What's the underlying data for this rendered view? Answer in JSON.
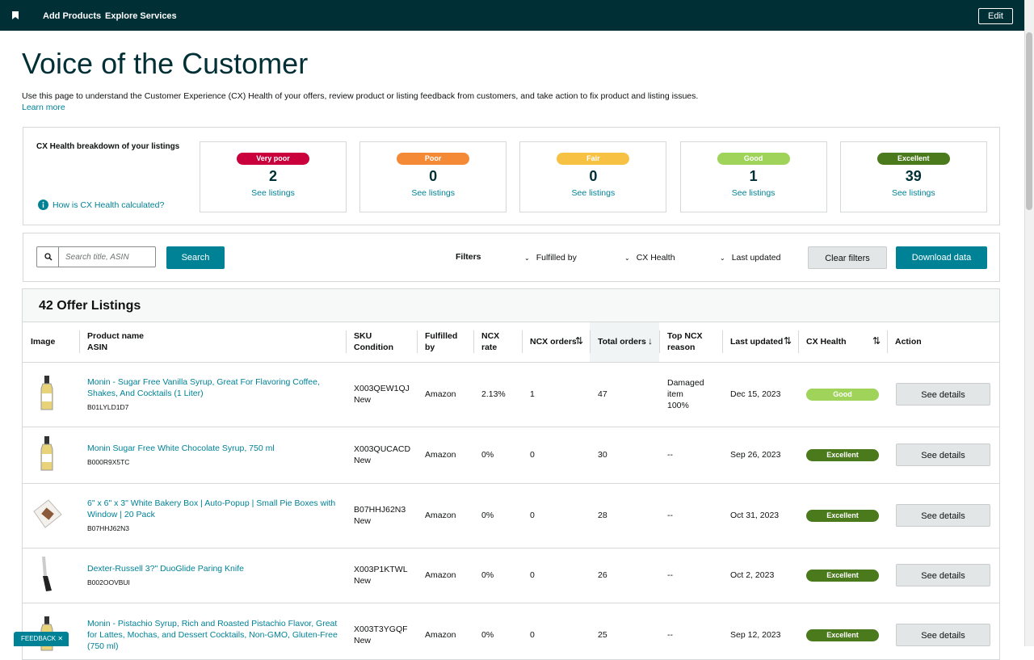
{
  "nav": {
    "items": [
      "Add Products",
      "Explore Services"
    ],
    "edit": "Edit"
  },
  "header": {
    "title": "Voice of the Customer",
    "description": "Use this page to understand the Customer Experience (CX) Health of your offers, review product or listing feedback from customers, and take action to fix product and listing issues.",
    "learn_more": "Learn more"
  },
  "health": {
    "title": "CX Health breakdown of your listings",
    "help": "How is CX Health calculated?",
    "cards": [
      {
        "label": "Very poor",
        "count": 2,
        "link": "See listings",
        "color": "#c9003b"
      },
      {
        "label": "Poor",
        "count": 0,
        "link": "See listings",
        "color": "#f58a36"
      },
      {
        "label": "Fair",
        "count": 0,
        "link": "See listings",
        "color": "#f7c244"
      },
      {
        "label": "Good",
        "count": 1,
        "link": "See listings",
        "color": "#9fd35a"
      },
      {
        "label": "Excellent",
        "count": 39,
        "link": "See listings",
        "color": "#4a7a1c"
      }
    ]
  },
  "search": {
    "placeholder": "Search title, ASIN",
    "button": "Search"
  },
  "filters": {
    "label": "Filters",
    "items": [
      "Fulfilled by",
      "CX Health",
      "Last updated"
    ],
    "clear": "Clear filters",
    "download": "Download data"
  },
  "table": {
    "title": "42 Offer Listings",
    "columns": [
      [
        "Image"
      ],
      [
        "Product name",
        "ASIN"
      ],
      [
        "SKU",
        "Condition"
      ],
      [
        "Fulfilled by"
      ],
      [
        "NCX rate"
      ],
      [
        "NCX orders"
      ],
      [
        "Total orders"
      ],
      [
        "Top NCX reason"
      ],
      [
        "Last updated"
      ],
      [
        "CX Health"
      ],
      [
        "Action"
      ]
    ],
    "rows": [
      {
        "name": "Monin - Sugar Free Vanilla Syrup, Great For Flavoring Coffee, Shakes, And Cocktails (1 Liter)",
        "asin": "B01LYLD1D7",
        "sku": "X003QEW1QJ",
        "condition": "New",
        "fulfilled": "Amazon",
        "ncx_rate": "2.13%",
        "ncx_orders": "1",
        "total_orders": "47",
        "reason": [
          "Damaged item",
          "100%"
        ],
        "updated": "Dec 15, 2023",
        "health": "Good",
        "action": "See details"
      },
      {
        "name": "Monin Sugar Free White Chocolate Syrup, 750 ml",
        "asin": "B000R9X5TC",
        "sku": "X003QUCACD",
        "condition": "New",
        "fulfilled": "Amazon",
        "ncx_rate": "0%",
        "ncx_orders": "0",
        "total_orders": "30",
        "reason": [
          "--"
        ],
        "updated": "Sep 26, 2023",
        "health": "Excellent",
        "action": "See details"
      },
      {
        "name": "6\" x 6\" x 3\" White Bakery Box | Auto-Popup | Small Pie Boxes with Window | 20 Pack",
        "asin": "B07HHJ62N3",
        "sku": "B07HHJ62N3",
        "condition": "New",
        "fulfilled": "Amazon",
        "ncx_rate": "0%",
        "ncx_orders": "0",
        "total_orders": "28",
        "reason": [
          "--"
        ],
        "updated": "Oct 31, 2023",
        "health": "Excellent",
        "action": "See details"
      },
      {
        "name": "Dexter-Russell 3?\" DuoGlide Paring Knife",
        "asin": "B002OOVBUI",
        "sku": "X003P1KTWL",
        "condition": "New",
        "fulfilled": "Amazon",
        "ncx_rate": "0%",
        "ncx_orders": "0",
        "total_orders": "26",
        "reason": [
          "--"
        ],
        "updated": "Oct 2, 2023",
        "health": "Excellent",
        "action": "See details"
      },
      {
        "name": "Monin - Pistachio Syrup, Rich and Roasted Pistachio Flavor, Great for Lattes, Mochas, and Dessert Cocktails, Non-GMO, Gluten-Free (750 ml)",
        "sku": "X003T3YGQF",
        "condition": "New",
        "fulfilled": "Amazon",
        "ncx_rate": "0%",
        "ncx_orders": "0",
        "total_orders": "25",
        "reason": [
          "--"
        ],
        "updated": "Sep 12, 2023",
        "health": "Excellent",
        "action": "See details"
      }
    ]
  },
  "feedback": "FEEDBACK"
}
